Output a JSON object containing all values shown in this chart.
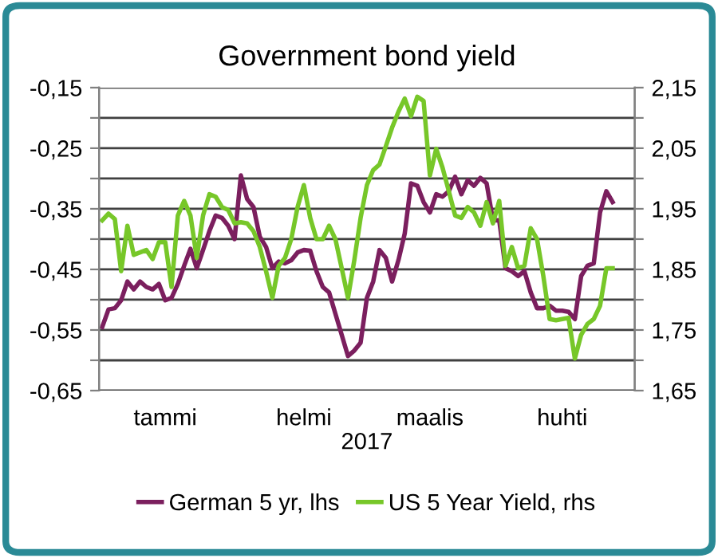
{
  "chart_data": {
    "type": "line",
    "title": "Government bond yield",
    "xlabel": "2017",
    "categories": [
      null,
      null,
      null,
      null,
      null,
      null,
      null,
      null,
      null,
      null,
      "tammi",
      null,
      null,
      null,
      null,
      null,
      null,
      null,
      null,
      null,
      null,
      null,
      null,
      null,
      null,
      null,
      null,
      null,
      null,
      null,
      null,
      null,
      "helmi",
      null,
      null,
      null,
      null,
      null,
      null,
      null,
      null,
      null,
      null,
      null,
      null,
      null,
      null,
      null,
      null,
      null,
      null,
      null,
      "maalis",
      null,
      null,
      null,
      null,
      null,
      null,
      null,
      null,
      null,
      null,
      null,
      null,
      null,
      null,
      null,
      null,
      null,
      null,
      null,
      null,
      "huhti",
      null,
      null,
      null,
      null,
      null,
      null,
      null,
      null
    ],
    "ylim": [
      -0.65,
      -0.15
    ],
    "yticks": [
      {
        "value": -0.65,
        "label": "-0,65"
      },
      {
        "value": -0.6,
        "label": null
      },
      {
        "value": -0.55,
        "label": "-0,55"
      },
      {
        "value": -0.5,
        "label": null
      },
      {
        "value": -0.45,
        "label": "-0,45"
      },
      {
        "value": -0.4,
        "label": null
      },
      {
        "value": -0.35,
        "label": "-0,35"
      },
      {
        "value": -0.3,
        "label": null
      },
      {
        "value": -0.25,
        "label": "-0,25"
      },
      {
        "value": -0.2,
        "label": null
      },
      {
        "value": -0.15,
        "label": "-0,15"
      }
    ],
    "y2lim": [
      1.65,
      2.15
    ],
    "y2ticks": [
      {
        "value": 1.65,
        "label": "1,65"
      },
      {
        "value": 1.7,
        "label": null
      },
      {
        "value": 1.75,
        "label": "1,75"
      },
      {
        "value": 1.8,
        "label": null
      },
      {
        "value": 1.85,
        "label": "1,85"
      },
      {
        "value": 1.9,
        "label": null
      },
      {
        "value": 1.95,
        "label": "1,95"
      },
      {
        "value": 2.0,
        "label": null
      },
      {
        "value": 2.05,
        "label": "2,05"
      },
      {
        "value": 2.1,
        "label": null
      },
      {
        "value": 2.15,
        "label": "2,15"
      }
    ],
    "grid": "y",
    "legend": "bottom",
    "marker": "none",
    "line_style": "solid",
    "series": [
      {
        "name": "German 5 yr, lhs",
        "color": "#7b1f5e",
        "values": [
          -0.545,
          -0.516,
          -0.514,
          -0.501,
          -0.47,
          -0.483,
          -0.47,
          -0.479,
          -0.483,
          -0.474,
          -0.501,
          -0.497,
          -0.474,
          -0.444,
          -0.416,
          -0.448,
          -0.418,
          -0.387,
          -0.361,
          -0.365,
          -0.378,
          -0.4,
          -0.295,
          -0.334,
          -0.347,
          -0.396,
          -0.413,
          -0.448,
          -0.437,
          -0.44,
          -0.435,
          -0.422,
          -0.418,
          -0.419,
          -0.453,
          -0.479,
          -0.488,
          -0.523,
          -0.558,
          -0.593,
          -0.584,
          -0.571,
          -0.497,
          -0.47,
          -0.418,
          -0.431,
          -0.47,
          -0.435,
          -0.391,
          -0.308,
          -0.312,
          -0.339,
          -0.356,
          -0.326,
          -0.33,
          -0.321,
          -0.297,
          -0.326,
          -0.303,
          -0.312,
          -0.299,
          -0.308,
          -0.369,
          -0.369,
          -0.448,
          -0.453,
          -0.461,
          -0.453,
          -0.488,
          -0.514,
          -0.514,
          -0.51,
          -0.518,
          -0.518,
          -0.52,
          -0.532,
          -0.461,
          -0.444,
          -0.44,
          -0.356,
          -0.321,
          -0.339
        ]
      },
      {
        "name": "US 5 Year Yield, rhs",
        "color": "#77c729",
        "axis": "y2",
        "values": [
          1.931,
          1.942,
          1.933,
          1.847,
          1.922,
          1.874,
          1.878,
          1.882,
          1.867,
          1.895,
          1.895,
          1.821,
          1.939,
          1.963,
          1.939,
          1.869,
          1.939,
          1.974,
          1.97,
          1.953,
          1.948,
          1.926,
          1.928,
          1.926,
          1.913,
          1.887,
          1.847,
          1.803,
          1.856,
          1.869,
          1.9,
          1.953,
          1.989,
          1.935,
          1.9,
          1.9,
          1.922,
          1.9,
          1.852,
          1.803,
          1.865,
          1.935,
          1.989,
          2.014,
          2.023,
          2.053,
          2.084,
          2.11,
          2.132,
          2.103,
          2.135,
          2.128,
          2.005,
          2.049,
          2.018,
          1.979,
          1.939,
          1.935,
          1.953,
          1.944,
          1.922,
          1.961,
          1.926,
          1.963,
          1.856,
          1.887,
          1.852,
          1.856,
          1.918,
          1.9,
          1.839,
          1.768,
          1.766,
          1.768,
          1.77,
          1.703,
          1.742,
          1.76,
          1.768,
          1.79,
          1.852,
          1.852
        ]
      }
    ]
  }
}
